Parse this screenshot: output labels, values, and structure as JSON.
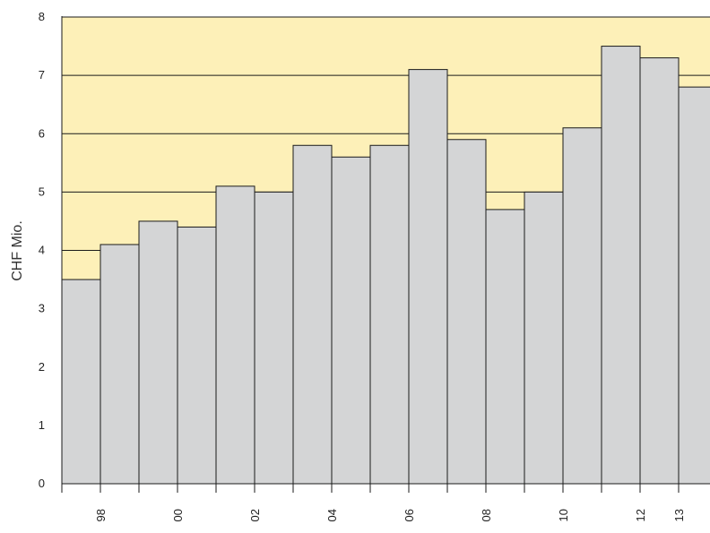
{
  "chart_data": {
    "type": "bar",
    "ylabel": "CHF Mio.",
    "ylim": [
      0,
      8
    ],
    "y_ticks": [
      "0",
      "1",
      "2",
      "3",
      "4",
      "5",
      "6",
      "7",
      "8"
    ],
    "values": [
      3.5,
      4.1,
      4.5,
      4.4,
      5.1,
      5.0,
      5.8,
      5.6,
      5.8,
      7.1,
      5.9,
      4.7,
      5.0,
      6.1,
      7.5,
      7.3,
      6.8
    ],
    "x_tick_labels": [
      "98",
      "00",
      "02",
      "04",
      "06",
      "08",
      "10",
      "12",
      "13"
    ],
    "gridlines_y": [
      4,
      5,
      6,
      7
    ],
    "grid": true,
    "colors": {
      "background": "#fdf0b8",
      "bar_fill": "#d4d5d6",
      "bar_stroke": "#1a1a1a",
      "gridline": "#1a1a1a"
    }
  }
}
